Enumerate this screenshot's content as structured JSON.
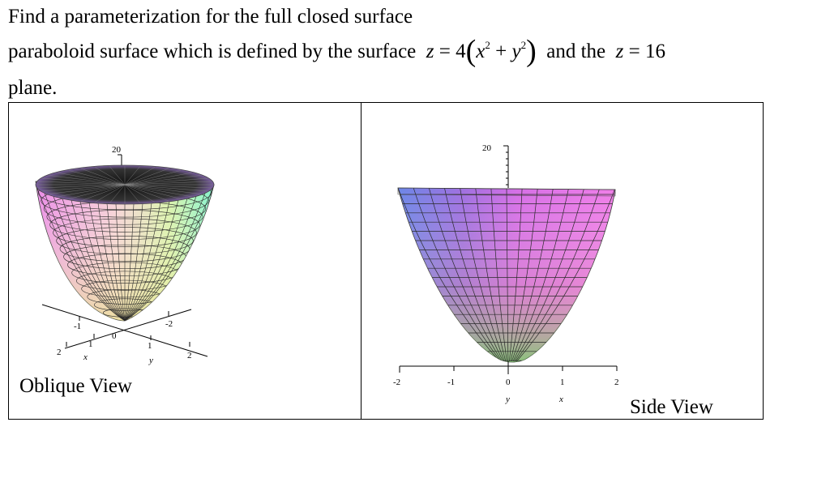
{
  "problem": {
    "line1": "Find a parameterization for the full closed surface",
    "line2_text": "paraboloid surface which is defined by the surface",
    "eq1": {
      "lhs": "z",
      "eq": "=",
      "coef": "4",
      "x": "x",
      "exp1": "2",
      "plus": "+",
      "y": "y",
      "exp2": "2"
    },
    "and_the": "and the",
    "eq2": {
      "lhs": "z",
      "eq": "=",
      "rhs": "16"
    },
    "line3": "plane."
  },
  "figures": {
    "oblique": {
      "caption": "Oblique View",
      "z_tick": "20",
      "x_ticks": [
        "2",
        "1",
        "-1"
      ],
      "y_ticks": [
        "-2",
        "1",
        "2"
      ],
      "origin": "0",
      "x_label": "x",
      "y_label": "y"
    },
    "side": {
      "caption": "Side View",
      "z_tick": "20",
      "x_ticks": [
        "-2",
        "-1",
        "0",
        "1",
        "2"
      ],
      "axis_label_y": "y",
      "axis_label_x": "x"
    }
  },
  "colors": {
    "text": "#000000",
    "border": "#000000"
  }
}
